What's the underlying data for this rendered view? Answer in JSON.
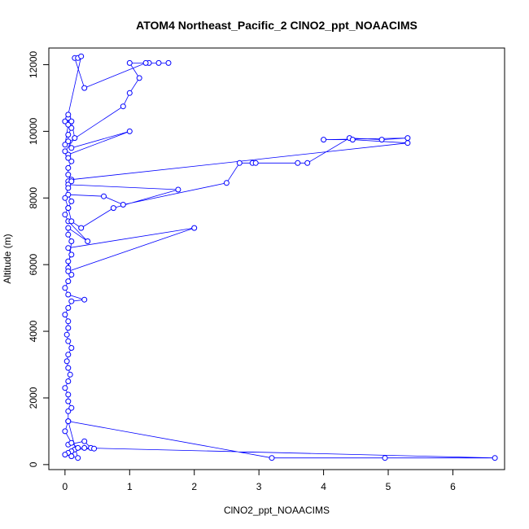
{
  "chart_data": {
    "type": "line",
    "title": "ATOM4 Northeast_Pacific_2 ClNO2_ppt_NOAACIMS",
    "xlabel": "ClNO2_ppt_NOAACIMS",
    "ylabel": "Altitude (m)",
    "xlim": [
      -0.25,
      6.8
    ],
    "ylim": [
      -150,
      12500
    ],
    "x_ticks": [
      0,
      1,
      2,
      3,
      4,
      5,
      6
    ],
    "y_ticks": [
      0,
      2000,
      4000,
      6000,
      8000,
      10000,
      12000
    ],
    "grid": false,
    "legend": "none",
    "markers": "open-circle",
    "color": "#0000ff",
    "series": [
      {
        "x": [
          0.05,
          0.3,
          0.4,
          0.45,
          0.15,
          0.1,
          0.05,
          0.0,
          0.1,
          0.2,
          0.05,
          3.2,
          4.95,
          6.65,
          0.3,
          0.2,
          0.1,
          0.0,
          0.05,
          0.05,
          0.1,
          0.05,
          0.05,
          0.0,
          0.05,
          0.08,
          0.05,
          0.03,
          0.05,
          0.1,
          0.05,
          0.03,
          0.05,
          0.05,
          0.0,
          0.05,
          0.1,
          0.3,
          0.05,
          0.0,
          0.05,
          0.1,
          0.05,
          0.05,
          0.1,
          0.05,
          2.0,
          0.05,
          0.1,
          0.05,
          0.05,
          0.35,
          0.05,
          0.0,
          0.05,
          0.1,
          0.05,
          0.6,
          0.9,
          2.5,
          2.7,
          2.9,
          2.95,
          3.6,
          3.75,
          4.4,
          4.9,
          5.3,
          4.0,
          4.45,
          5.3,
          0.1,
          0.05,
          0.05,
          1.75,
          0.75,
          0.25,
          0.1,
          0.05,
          0.0,
          0.05,
          0.1,
          0.05,
          0.05,
          0.1,
          0.05,
          1.0,
          0.1,
          0.05,
          0.05,
          0.1,
          0.0,
          0.05,
          0.05,
          0.0,
          0.9,
          1.0,
          1.15,
          1.0,
          1.3,
          1.45,
          1.6,
          1.25,
          0.3,
          0.15,
          0.2,
          0.25,
          0.05,
          0.1,
          0.15,
          0.0,
          0.05
        ],
        "y": [
          600,
          700,
          500,
          480,
          450,
          400,
          350,
          300,
          250,
          200,
          1300,
          200,
          200,
          200,
          500,
          500,
          650,
          1000,
          1300,
          1600,
          1700,
          1900,
          2100,
          2300,
          2500,
          2700,
          2900,
          3100,
          3300,
          3500,
          3700,
          3900,
          4100,
          4300,
          4500,
          4700,
          4900,
          4950,
          5100,
          5300,
          5500,
          5700,
          5900,
          6100,
          6300,
          6500,
          7100,
          5800,
          6700,
          6900,
          7100,
          6700,
          7300,
          7500,
          7700,
          7900,
          8100,
          8050,
          7800,
          8450,
          9050,
          9050,
          9050,
          9050,
          9050,
          9800,
          9750,
          9800,
          9750,
          9750,
          9650,
          8550,
          8500,
          8400,
          8250,
          7700,
          7100,
          7300,
          7700,
          8000,
          8300,
          8500,
          8700,
          8900,
          9100,
          9300,
          10000,
          9500,
          9700,
          9900,
          10100,
          10300,
          10400,
          10200,
          9600,
          10750,
          11150,
          11600,
          12050,
          12050,
          12050,
          12050,
          12050,
          11300,
          12200,
          12200,
          12250,
          10500,
          10300,
          9800,
          9400,
          9200
        ]
      }
    ]
  }
}
